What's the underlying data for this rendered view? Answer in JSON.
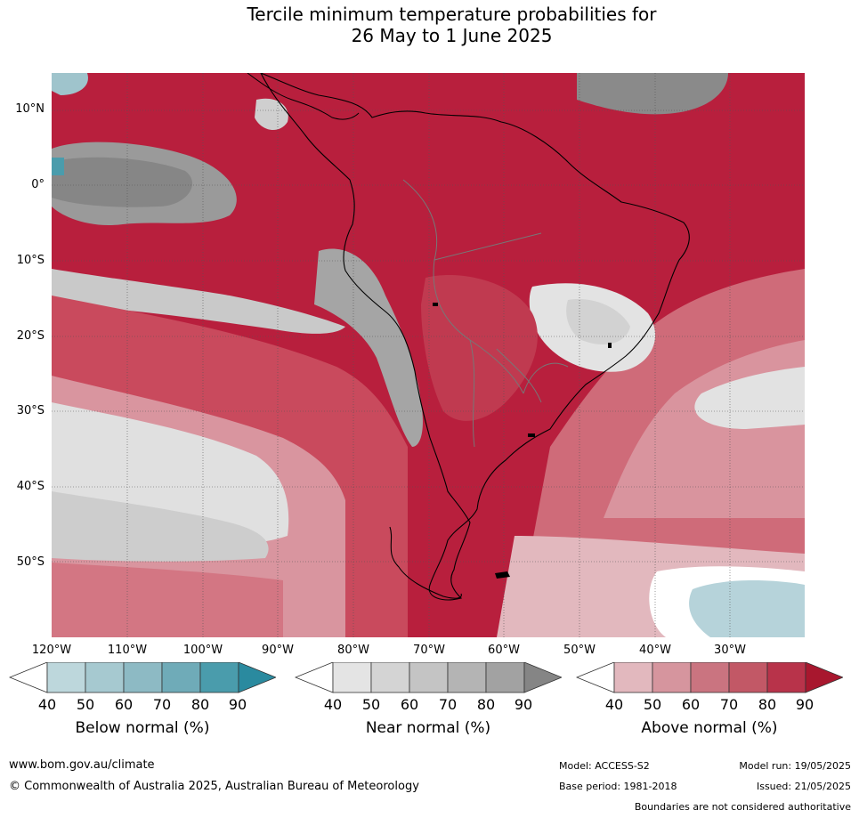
{
  "title_line1": "Tercile minimum temperature probabilities for",
  "title_line2": "26 May to 1 June 2025",
  "lat_labels": [
    "10°N",
    "0°",
    "10°S",
    "20°S",
    "30°S",
    "40°S",
    "50°S"
  ],
  "lon_labels": [
    "120°W",
    "110°W",
    "100°W",
    "90°W",
    "80°W",
    "70°W",
    "60°W",
    "50°W",
    "40°W",
    "30°W"
  ],
  "colorbars": [
    {
      "label": "Below normal (%)",
      "ticks": [
        "40",
        "50",
        "60",
        "70",
        "80",
        "90"
      ],
      "colors": [
        "#bdd7dc",
        "#a6c9d0",
        "#8dbac4",
        "#6fabb8",
        "#4a9cac",
        "#2a8a9f"
      ]
    },
    {
      "label": "Near normal (%)",
      "ticks": [
        "40",
        "50",
        "60",
        "70",
        "80",
        "90"
      ],
      "colors": [
        "#e4e4e4",
        "#d4d4d4",
        "#c4c4c4",
        "#b4b4b4",
        "#a2a2a2",
        "#858585"
      ]
    },
    {
      "label": "Above normal (%)",
      "ticks": [
        "40",
        "50",
        "60",
        "70",
        "80",
        "90"
      ],
      "colors": [
        "#e2b8be",
        "#d6959e",
        "#ca7480",
        "#c25866",
        "#b8334a",
        "#a8172e"
      ]
    }
  ],
  "footer": {
    "url": "www.bom.gov.au/climate",
    "copyright": "© Commonwealth of Australia 2025, Australian Bureau of Meteorology",
    "model": "Model: ACCESS-S2",
    "base_period": "Base period: 1981-2018",
    "model_run": "Model run: 19/05/2025",
    "issued": "Issued: 21/05/2025",
    "disclaimer": "Boundaries are not considered authoritative"
  }
}
